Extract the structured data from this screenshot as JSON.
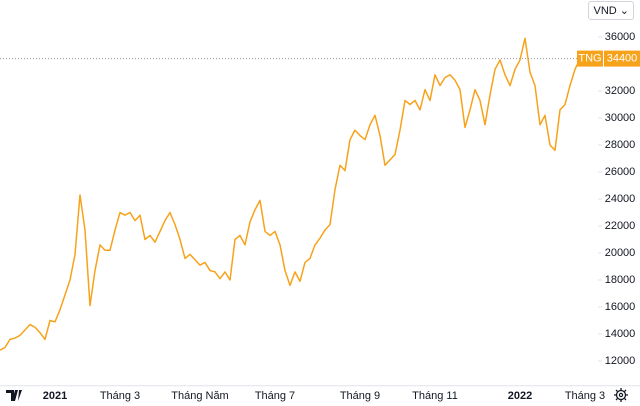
{
  "chart_data": {
    "type": "line",
    "currency": "VND",
    "categories": [
      null,
      null,
      null,
      null,
      null,
      null,
      null,
      null,
      null,
      null,
      null,
      "2021",
      null,
      null,
      null,
      null,
      null,
      null,
      null,
      null,
      null,
      null,
      null,
      null,
      "Tháng 3",
      null,
      null,
      null,
      null,
      null,
      null,
      null,
      null,
      null,
      null,
      null,
      null,
      null,
      null,
      null,
      "Tháng Năm",
      null,
      null,
      null,
      null,
      null,
      null,
      null,
      null,
      null,
      null,
      null,
      null,
      null,
      null,
      "Tháng 7",
      null,
      null,
      null,
      null,
      null,
      null,
      null,
      null,
      null,
      null,
      null,
      null,
      null,
      null,
      null,
      null,
      "Tháng 9",
      null,
      null,
      null,
      null,
      null,
      null,
      null,
      null,
      null,
      null,
      null,
      null,
      null,
      null,
      "Tháng 11",
      null,
      null,
      null,
      null,
      null,
      null,
      null,
      null,
      null,
      null,
      null,
      null,
      null,
      null,
      null,
      null,
      "2022",
      null,
      null,
      null,
      null,
      null,
      null,
      null,
      null,
      null,
      null,
      null,
      null,
      "Tháng 3"
    ],
    "series": [
      {
        "name": "TNG",
        "color": "#f7a21b",
        "values": [
          12800,
          13000,
          13600,
          13700,
          13900,
          14300,
          14700,
          14500,
          14100,
          13600,
          15000,
          14900,
          15800,
          16900,
          18000,
          19900,
          24300,
          21700,
          16100,
          18700,
          20600,
          20200,
          20200,
          21700,
          23000,
          22800,
          23000,
          22400,
          22800,
          21000,
          21300,
          20800,
          21600,
          22400,
          23000,
          22100,
          21000,
          19600,
          19900,
          19500,
          19100,
          19300,
          18700,
          18600,
          18100,
          18600,
          18000,
          21000,
          21300,
          20600,
          22300,
          23200,
          23900,
          21600,
          21300,
          21600,
          20600,
          18700,
          17600,
          18600,
          17900,
          19300,
          19600,
          20600,
          21100,
          21700,
          22100,
          24700,
          26500,
          26100,
          28400,
          29100,
          28700,
          28400,
          29500,
          30200,
          28700,
          26500,
          26900,
          27300,
          29100,
          31300,
          31000,
          31300,
          30600,
          32100,
          31300,
          33200,
          32400,
          33000,
          33200,
          32800,
          32100,
          29300,
          30600,
          32100,
          31300,
          29500,
          31700,
          33600,
          34300,
          33200,
          32400,
          33600,
          34300,
          35900,
          33400,
          32400,
          29500,
          30200,
          28000,
          27600,
          30600,
          31000,
          32400,
          33600,
          34400,
          null
        ]
      }
    ],
    "ylim": [
      10200,
      38700
    ],
    "yticks": [
      12000,
      14000,
      16000,
      18000,
      20000,
      22000,
      24000,
      26000,
      28000,
      30000,
      32000,
      36000
    ]
  }
}
